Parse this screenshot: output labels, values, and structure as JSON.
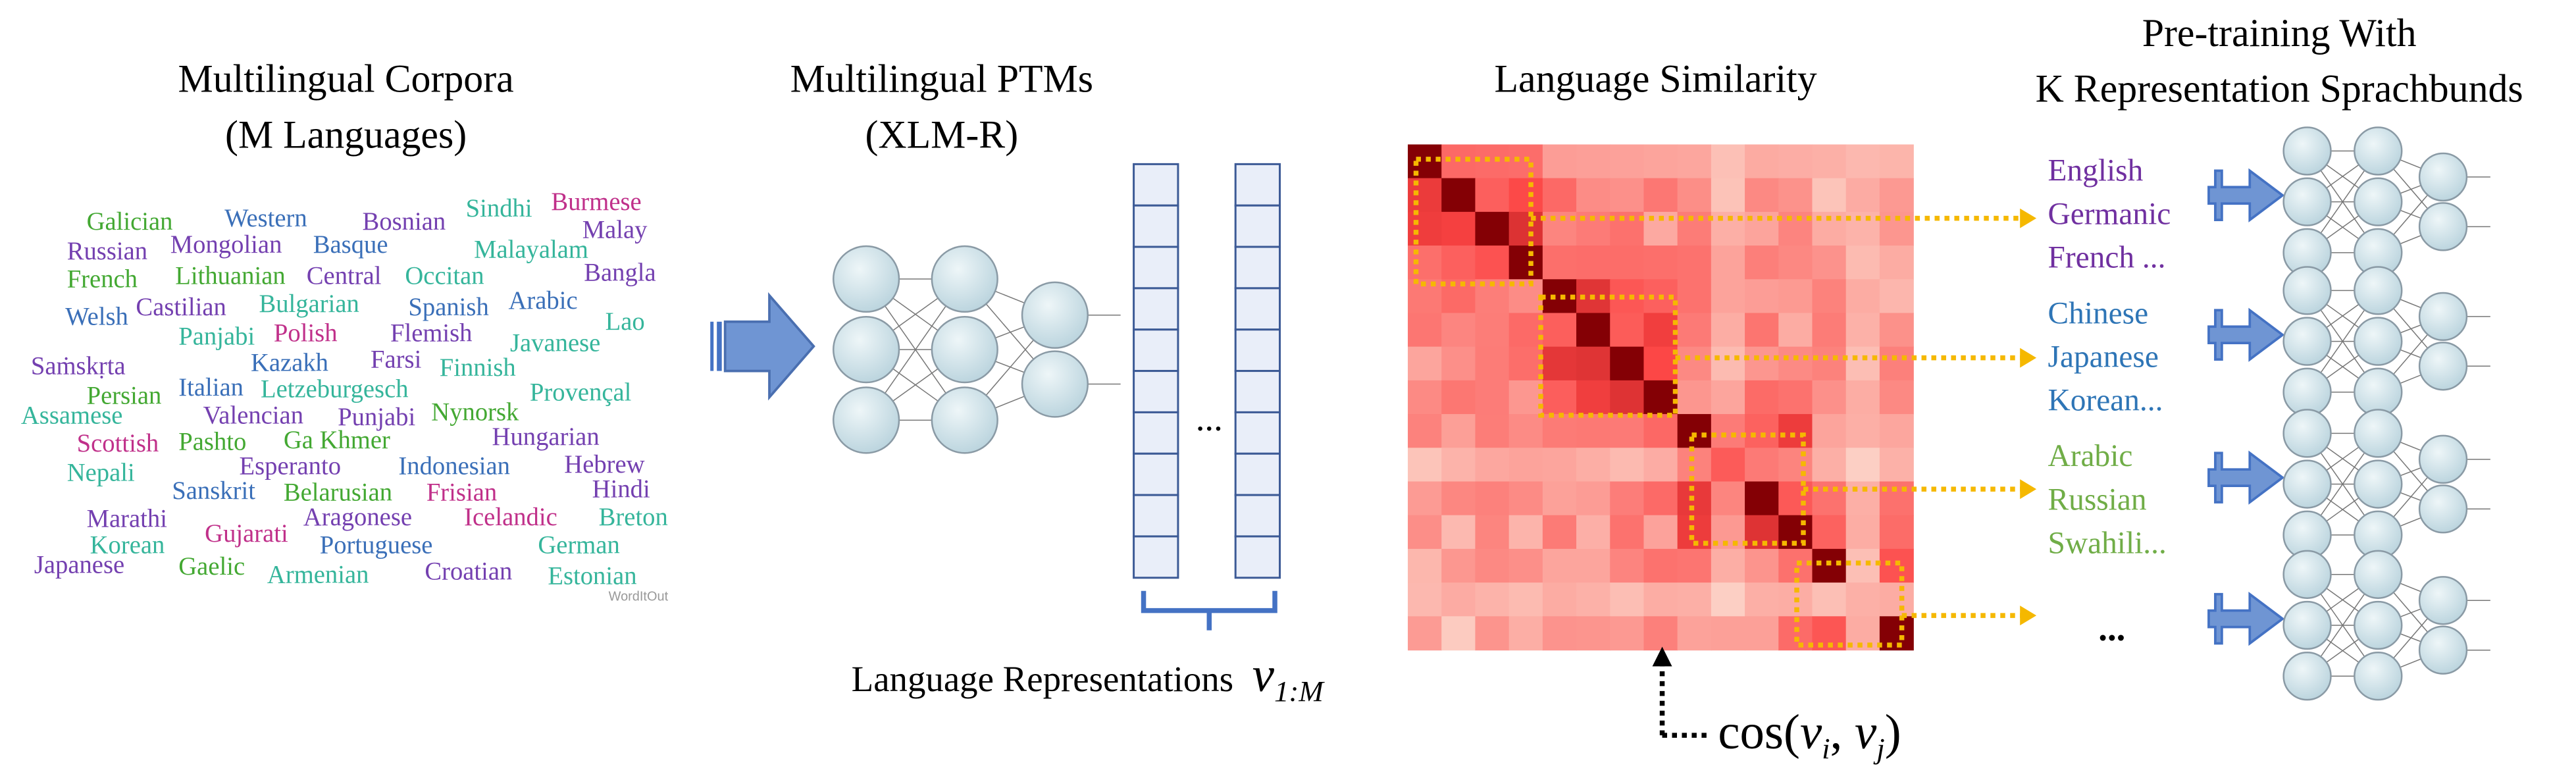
{
  "corpora": {
    "title": "Multilingual Corpora",
    "subtitle": "(M Languages)",
    "words": [
      "Galician",
      "Western",
      "Bosnian",
      "Sindhi",
      "Burmese",
      "Malay",
      "Russian",
      "Mongolian",
      "Basque",
      "Malayalam",
      "Bangla",
      "French",
      "Lithuanian",
      "Central",
      "Occitan",
      "Welsh",
      "Castilian",
      "Bulgarian",
      "Spanish",
      "Arabic",
      "Lao",
      "Panjabi",
      "Polish",
      "Flemish",
      "Javanese",
      "Saṁskṛta",
      "Kazakh",
      "Farsi",
      "Finnish",
      "Persian",
      "Italian",
      "Letzeburgesch",
      "Provençal",
      "Assamese",
      "Valencian",
      "Punjabi",
      "Nynorsk",
      "Scottish",
      "Pashto",
      "Ga Khmer",
      "Hungarian",
      "Nepali",
      "Esperanto",
      "Indonesian",
      "Hebrew",
      "Sanskrit",
      "Belarusian",
      "Frisian",
      "Hindi",
      "Marathi",
      "Aragonese",
      "Icelandic",
      "Breton",
      "Korean",
      "Gujarati",
      "Portuguese",
      "German",
      "Japanese",
      "Gaelic",
      "Armenian",
      "Croatian",
      "Estonian"
    ],
    "watermark": "WordItOut"
  },
  "ptms": {
    "title": "Multilingual PTMs",
    "subtitle": "(XLM-R)",
    "ellipsis": "...",
    "representations": {
      "label": "Language Representations",
      "symbol": "v",
      "subscript": "1:M"
    }
  },
  "similarity": {
    "title": "Language Similarity",
    "formula": {
      "open": "cos(",
      "v1": "v",
      "i": "i",
      "comma": ", ",
      "v2": "v",
      "j": "j",
      "close": ")"
    }
  },
  "pretraining": {
    "title": [
      "Pre-training With",
      "K Representation Sprachbunds"
    ],
    "groups": [
      [
        "English",
        "Germanic",
        "French ..."
      ],
      [
        "Chinese",
        "Japanese",
        "Korean..."
      ],
      [
        "Arabic",
        "Russian",
        "Swahili..."
      ]
    ],
    "ellipsis": "..."
  }
}
